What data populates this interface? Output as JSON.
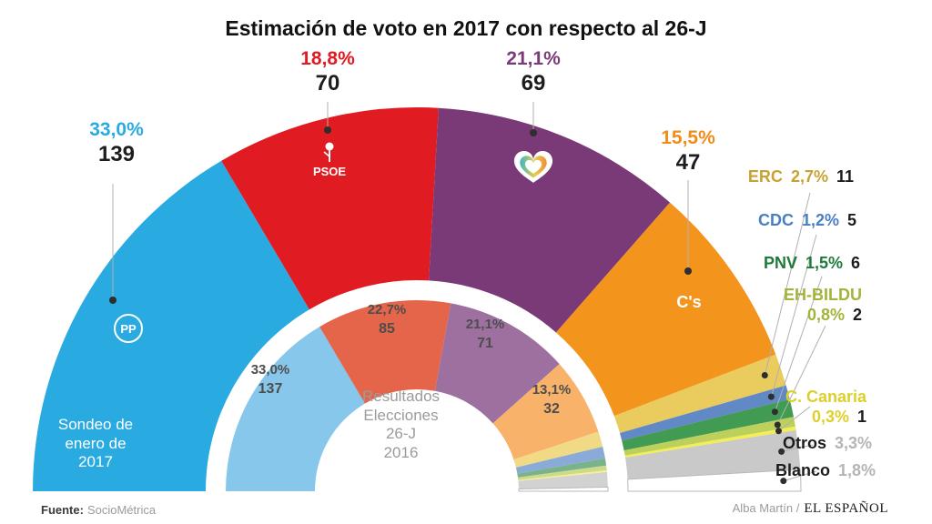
{
  "title": "Estimación de voto en 2017 con respecto al 26-J",
  "footer": {
    "source_label": "Fuente:",
    "source_value": "SocioMétrica",
    "credit_author": "Alba Martín /",
    "credit_brand": "EL ESPAÑOL"
  },
  "chart_data": {
    "type": "donut",
    "variant": "semicircle hemicycle, two concentric rings, 180 degree span",
    "outer_ring": {
      "caption_lines": [
        "Sondeo de",
        "enero de",
        "2017"
      ],
      "segments": [
        {
          "party": "PP",
          "pct": 33.0,
          "pct_label": "33,0%",
          "seats": 139,
          "color": "#29abe2",
          "label_color": "#29abe2",
          "logo_text": "PP"
        },
        {
          "party": "PSOE",
          "pct": 18.8,
          "pct_label": "18,8%",
          "seats": 70,
          "color": "#e11b22",
          "label_color": "#e11b22",
          "logo_text": "PSOE"
        },
        {
          "party": "Podemos",
          "pct": 21.1,
          "pct_label": "21,1%",
          "seats": 69,
          "color": "#7a3a78",
          "label_color": "#7a3a78",
          "logo_icon": "heart"
        },
        {
          "party": "C's",
          "pct": 15.5,
          "pct_label": "15,5%",
          "seats": 47,
          "color": "#f3941c",
          "label_color": "#f08c1a",
          "logo_text": "C's"
        },
        {
          "party": "ERC",
          "pct": 2.7,
          "pct_label": "2,7%",
          "seats": 11,
          "color": "#e9cb5e",
          "label_color": "#c8a231"
        },
        {
          "party": "CDC",
          "pct": 1.2,
          "pct_label": "1,2%",
          "seats": 5,
          "color": "#6089c6",
          "label_color": "#4a7fc1"
        },
        {
          "party": "PNV",
          "pct": 1.5,
          "pct_label": "1,5%",
          "seats": 6,
          "color": "#419b52",
          "label_color": "#1e7a3c"
        },
        {
          "party": "EH-BILDU",
          "pct": 0.8,
          "pct_label": "0,8%",
          "seats": 2,
          "color": "#bdd05c",
          "label_color": "#a4b33a"
        },
        {
          "party": "C. Canaria",
          "pct": 0.3,
          "pct_label": "0,3%",
          "seats": 1,
          "color": "#f3ee55",
          "label_color": "#ddd02a"
        },
        {
          "party": "Otros",
          "pct": 3.3,
          "pct_label": "3,3%",
          "color": "#c9c9c9",
          "label_color": "#b5b5b5"
        },
        {
          "party": "Blanco",
          "pct": 1.8,
          "pct_label": "1,8%",
          "color": "#ffffff",
          "label_color": "#b5b5b5"
        }
      ]
    },
    "inner_ring": {
      "caption_lines": [
        "Resultados",
        "Elecciones",
        "26-J",
        "2016"
      ],
      "segments": [
        {
          "party": "PP",
          "pct": 33.0,
          "pct_label": "33,0%",
          "seats": 137,
          "color": "#87c7ec"
        },
        {
          "party": "PSOE",
          "pct": 22.7,
          "pct_label": "22,7%",
          "seats": 85,
          "color": "#e5654a"
        },
        {
          "party": "Podemos",
          "pct": 21.1,
          "pct_label": "21,1%",
          "seats": 71,
          "color": "#9d70a0"
        },
        {
          "party": "C's",
          "pct": 13.1,
          "pct_label": "13,1%",
          "seats": 32,
          "color": "#f8b269"
        },
        {
          "party": "ERC",
          "pct": 2.6,
          "color": "#f1da85"
        },
        {
          "party": "CDC",
          "pct": 2.0,
          "color": "#8aabd8"
        },
        {
          "party": "PNV",
          "pct": 1.2,
          "color": "#7ab38a"
        },
        {
          "party": "EH-BILDU",
          "pct": 0.8,
          "color": "#cdd98b"
        },
        {
          "party": "C. Canaria",
          "pct": 0.3,
          "color": "#f6f08e"
        },
        {
          "party": "Otros",
          "pct": 2.5,
          "color": "#d2d2d2"
        },
        {
          "party": "Blanco",
          "pct": 0.7,
          "color": "#ffffff"
        }
      ]
    }
  }
}
